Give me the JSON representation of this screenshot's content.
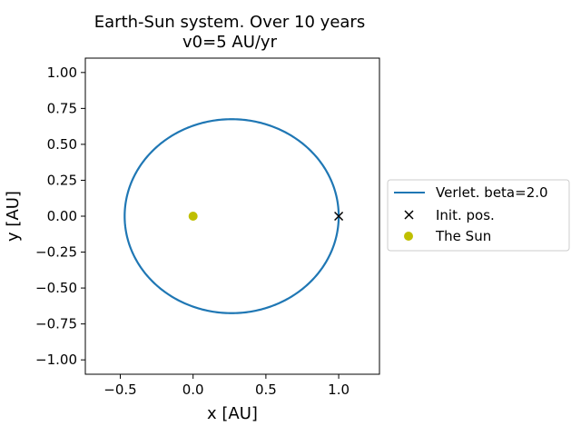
{
  "chart_data": {
    "type": "line",
    "title_lines": [
      "Earth-Sun system. Over 10 years",
      "v0=5 AU/yr"
    ],
    "xlabel": "x [AU]",
    "ylabel": "y [AU]",
    "xlim": [
      -0.74,
      1.28
    ],
    "ylim": [
      -1.1,
      1.1
    ],
    "xticks": [
      -0.5,
      0.0,
      0.5,
      1.0
    ],
    "xtick_labels": [
      "−0.5",
      "0.0",
      "0.5",
      "1.0"
    ],
    "yticks": [
      -1.0,
      -0.75,
      -0.5,
      -0.25,
      0.0,
      0.25,
      0.5,
      0.75,
      1.0
    ],
    "ytick_labels": [
      "−1.00",
      "−0.75",
      "−0.50",
      "−0.25",
      "0.00",
      "0.25",
      "0.50",
      "0.75",
      "1.00"
    ],
    "grid": false,
    "legend_position": "right, outside the axes",
    "series": [
      {
        "name": "Verlet. beta=2.0",
        "kind": "line",
        "color": "#1f77b4",
        "orbit": {
          "center": [
            0.265,
            0.0
          ],
          "semi_axis_x": 0.735,
          "semi_axis_y": 0.675,
          "start_angle_deg": 0
        }
      },
      {
        "name": "Init. pos.",
        "kind": "marker",
        "marker": "x",
        "color": "#000000",
        "x": [
          1.0
        ],
        "y": [
          0.0
        ]
      },
      {
        "name": "The Sun",
        "kind": "marker",
        "marker": "circle",
        "color": "#bfbf00",
        "x": [
          0.0
        ],
        "y": [
          0.0
        ]
      }
    ]
  }
}
